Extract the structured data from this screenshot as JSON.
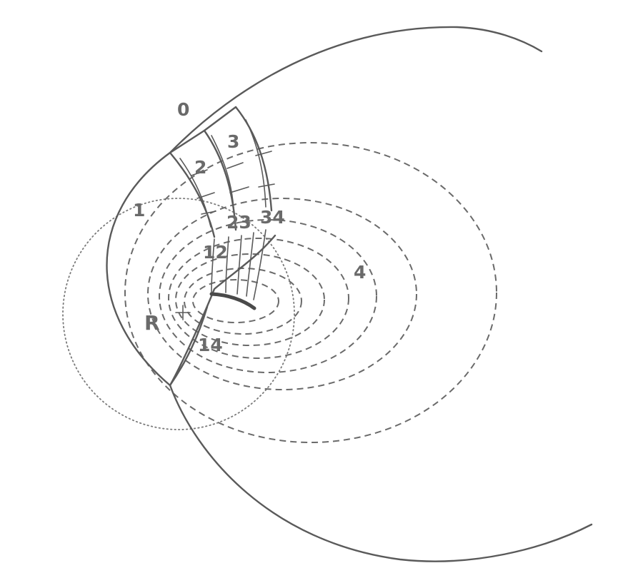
{
  "labels": {
    "region_0": "0",
    "region_1": "1",
    "region_2": "2",
    "region_3": "3",
    "region_4": "4",
    "region_12": "12",
    "region_23": "23",
    "region_34": "34",
    "region_14": "14",
    "point_R": "R"
  },
  "colors": {
    "stroke": "#5a5a5a",
    "dashed": "#6a6a6a",
    "dotted": "#7a7a7a",
    "label": "#6a6a6a",
    "background": "#ffffff"
  }
}
